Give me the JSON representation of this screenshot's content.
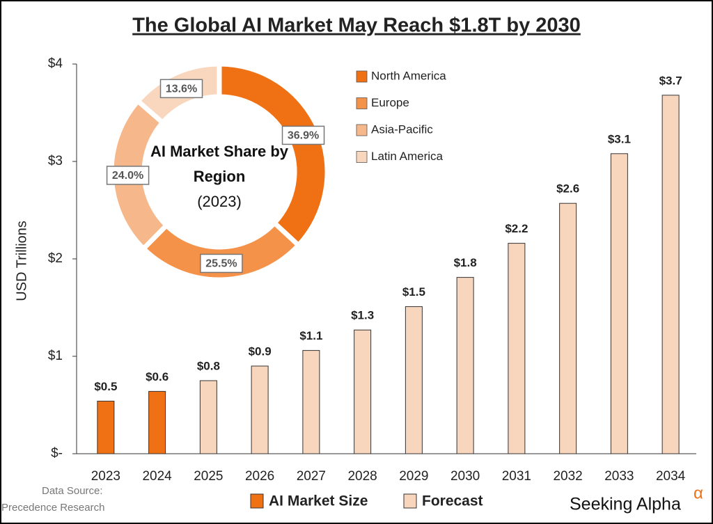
{
  "chart_data": [
    {
      "type": "bar",
      "title": "The Global AI Market May Reach $1.8T by 2030",
      "y_label": "USD Trillions",
      "categories": [
        "2023",
        "2024",
        "2025",
        "2026",
        "2027",
        "2028",
        "2029",
        "2030",
        "2031",
        "2032",
        "2033",
        "2034"
      ],
      "series": [
        {
          "name": "AI Market Size",
          "color": "#f07014",
          "values": [
            0.54,
            0.64,
            null,
            null,
            null,
            null,
            null,
            null,
            null,
            null,
            null,
            null
          ],
          "value_labels": [
            "$0.5",
            "$0.6",
            null,
            null,
            null,
            null,
            null,
            null,
            null,
            null,
            null,
            null
          ]
        },
        {
          "name": "Forecast",
          "color": "#f8d5bd",
          "values": [
            null,
            null,
            0.75,
            0.9,
            1.06,
            1.27,
            1.51,
            1.81,
            2.16,
            2.57,
            3.08,
            3.68
          ],
          "value_labels": [
            null,
            null,
            "$0.8",
            "$0.9",
            "$1.1",
            "$1.3",
            "$1.5",
            "$1.8",
            "$2.2",
            "$2.6",
            "$3.1",
            "$3.7"
          ]
        }
      ],
      "ylim": [
        0,
        4
      ],
      "yticks": [
        {
          "value": 0,
          "label": "$-"
        },
        {
          "value": 1,
          "label": "$1"
        },
        {
          "value": 2,
          "label": "$2"
        },
        {
          "value": 3,
          "label": "$3"
        },
        {
          "value": 4,
          "label": "$4"
        }
      ],
      "grid": false
    },
    {
      "type": "donut",
      "title": "AI Market Share by Region",
      "subtitle": "(2023)",
      "categories": [
        "North America",
        "Europe",
        "Asia-Pacific",
        "Latin America"
      ],
      "values": [
        36.9,
        25.5,
        24.0,
        13.6
      ],
      "value_labels": [
        "36.9%",
        "25.5%",
        "24.0%",
        "13.6%"
      ],
      "colors": [
        "#f07014",
        "#f5924a",
        "#f6b88a",
        "#f8d7be"
      ]
    }
  ],
  "source_label": "Data Source:",
  "source": "Precedence Research",
  "brand": "Seeking Alpha",
  "brand_mark": "α"
}
